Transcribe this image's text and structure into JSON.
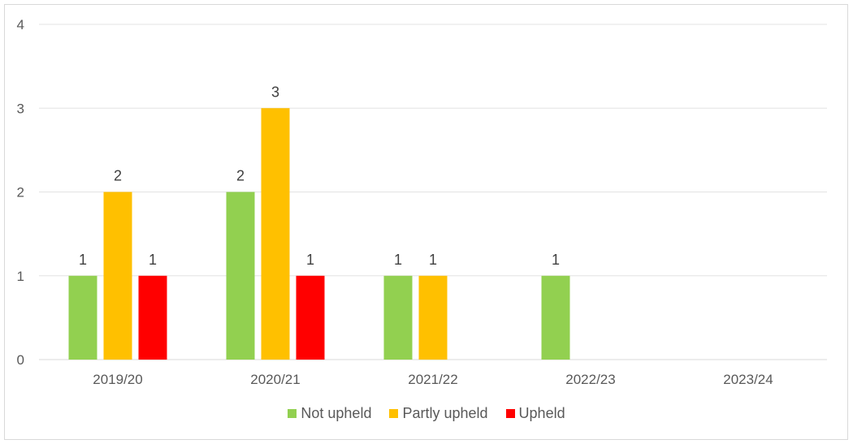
{
  "chart_data": {
    "type": "bar",
    "categories": [
      "2019/20",
      "2020/21",
      "2021/22",
      "2022/23",
      "2023/24"
    ],
    "series": [
      {
        "name": "Not upheld",
        "color": "#92d050",
        "values": [
          1,
          2,
          1,
          1,
          0
        ]
      },
      {
        "name": "Partly upheld",
        "color": "#ffc000",
        "values": [
          2,
          3,
          1,
          0,
          0
        ]
      },
      {
        "name": "Upheld",
        "color": "#ff0000",
        "values": [
          1,
          1,
          0,
          0,
          0
        ]
      }
    ],
    "ylim": [
      0,
      4
    ],
    "yticks": [
      0,
      1,
      2,
      3,
      4
    ],
    "grid": true,
    "legend": "bottom",
    "show_data_labels": true
  }
}
